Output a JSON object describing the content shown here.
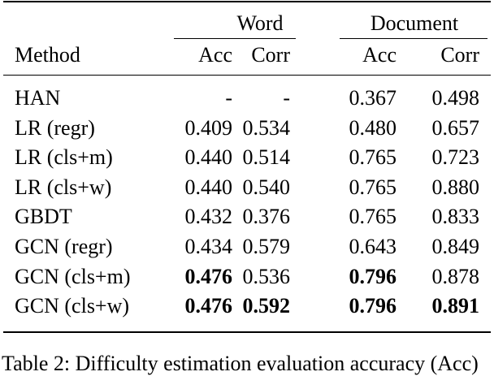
{
  "table": {
    "group_headers": [
      "Word",
      "Document"
    ],
    "columns": [
      "Method",
      "Acc",
      "Corr",
      "Acc",
      "Corr"
    ],
    "rows": [
      {
        "cells": [
          "HAN",
          "-",
          "-",
          "0.367",
          "0.498"
        ],
        "bold": [
          false,
          false,
          false,
          false,
          false
        ]
      },
      {
        "cells": [
          "LR (regr)",
          "0.409",
          "0.534",
          "0.480",
          "0.657"
        ],
        "bold": [
          false,
          false,
          false,
          false,
          false
        ]
      },
      {
        "cells": [
          "LR (cls+m)",
          "0.440",
          "0.514",
          "0.765",
          "0.723"
        ],
        "bold": [
          false,
          false,
          false,
          false,
          false
        ]
      },
      {
        "cells": [
          "LR (cls+w)",
          "0.440",
          "0.540",
          "0.765",
          "0.880"
        ],
        "bold": [
          false,
          false,
          false,
          false,
          false
        ]
      },
      {
        "cells": [
          "GBDT",
          "0.432",
          "0.376",
          "0.765",
          "0.833"
        ],
        "bold": [
          false,
          false,
          false,
          false,
          false
        ]
      },
      {
        "cells": [
          "GCN (regr)",
          "0.434",
          "0.579",
          "0.643",
          "0.849"
        ],
        "bold": [
          false,
          false,
          false,
          false,
          false
        ]
      },
      {
        "cells": [
          "GCN (cls+m)",
          "0.476",
          "0.536",
          "0.796",
          "0.878"
        ],
        "bold": [
          false,
          true,
          false,
          true,
          false
        ]
      },
      {
        "cells": [
          "GCN (cls+w)",
          "0.476",
          "0.592",
          "0.796",
          "0.891"
        ],
        "bold": [
          false,
          true,
          true,
          true,
          true
        ]
      }
    ]
  },
  "caption": "Table 2: Difficulty estimation evaluation accuracy (Acc)"
}
